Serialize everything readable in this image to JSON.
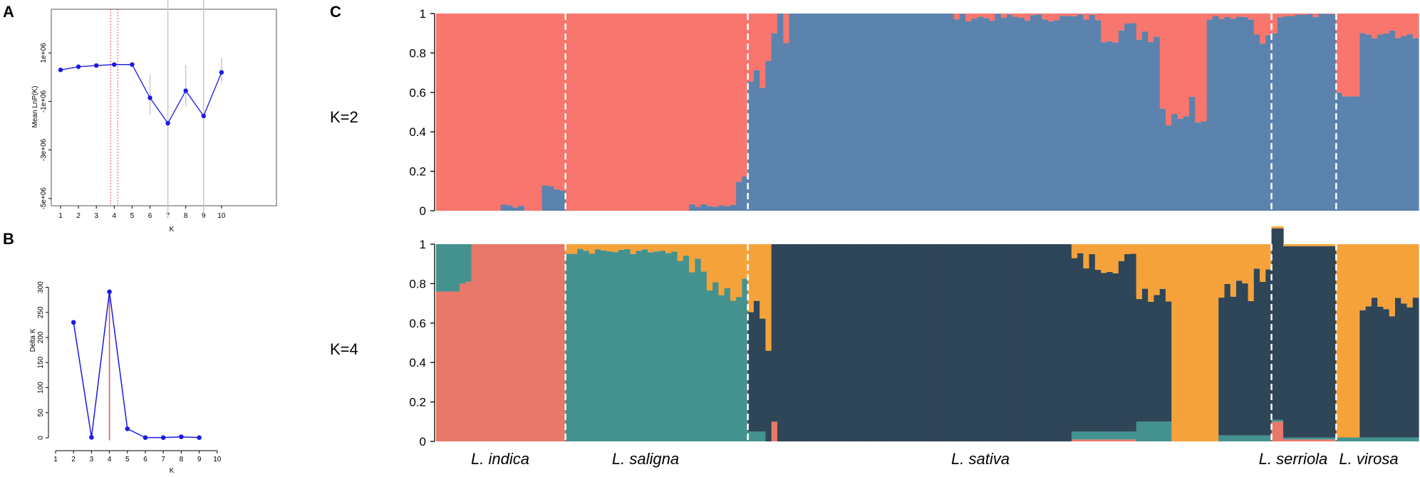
{
  "colors": {
    "k2_red": "#F8766D",
    "k2_blue": "#5B83AD",
    "k4_salmon": "#E8796A",
    "k4_teal": "#44928F",
    "k4_dark": "#2F4558",
    "k4_orange": "#F6A23A",
    "k4_pink": "#E88A86",
    "line_blue": "#1A1AE6",
    "err_gray": "#C8C8C8",
    "ref_red": "#E05050"
  },
  "panel_letters": {
    "a": "A",
    "b": "B",
    "c": "C"
  },
  "chart_data": [
    {
      "id": "A",
      "type": "line",
      "xlabel": "K",
      "ylabel": "Mean LnP(K)",
      "x": [
        1,
        2,
        3,
        4,
        5,
        6,
        7,
        8,
        9,
        10
      ],
      "xticks": [
        "1",
        "2",
        "3",
        "4",
        "5",
        "6",
        "7",
        "8",
        "9",
        "10"
      ],
      "y": [
        300000,
        430000,
        480000,
        520000,
        520000,
        -850000,
        -1900000,
        -560000,
        -1600000,
        200000
      ],
      "err_low": [
        null,
        null,
        null,
        null,
        null,
        -1550000,
        -5800000,
        -1200000,
        -5800000,
        -200000
      ],
      "err_high": [
        null,
        null,
        null,
        null,
        null,
        100000,
        3200000,
        500000,
        4500000,
        800000
      ],
      "ylim": [
        -5300000,
        2800000
      ],
      "yticks": [
        1000000,
        -1000000,
        -3000000,
        -5000000
      ],
      "ytick_labels": [
        "1e+06",
        "-1e+06",
        "-3e+06",
        "-5e+06"
      ],
      "vlines": [
        3.8,
        4.2
      ]
    },
    {
      "id": "B",
      "type": "line",
      "xlabel": "K",
      "ylabel": "Delta K",
      "x": [
        2,
        3,
        4,
        5,
        6,
        7,
        8,
        9
      ],
      "xticks": [
        "1",
        "2",
        "3",
        "4",
        "5",
        "6",
        "7",
        "8",
        "9",
        "10"
      ],
      "y": [
        230,
        1,
        291,
        18,
        0.5,
        0.5,
        2,
        0.5
      ],
      "ylim": [
        -10,
        300
      ],
      "yticks": [
        "0",
        "50",
        "100",
        "150",
        "200",
        "250",
        "300"
      ],
      "vline": 4
    },
    {
      "id": "C",
      "type": "bar",
      "stacked": true,
      "yticks": [
        "0",
        "0.2",
        "0.4",
        "0.6",
        "0.8",
        "1"
      ],
      "ylim": [
        0,
        1
      ],
      "rows": [
        {
          "k_label": "K=2",
          "clusters": [
            "k2_red",
            "k2_blue"
          ]
        },
        {
          "k_label": "K=4",
          "clusters": [
            "k4_salmon",
            "k4_teal",
            "k4_dark",
            "k4_orange"
          ]
        }
      ],
      "groups": [
        {
          "name": "L. indica",
          "n": 22
        },
        {
          "name": "L. saligna",
          "n": 31
        },
        {
          "name": "L. sativa",
          "n": 89
        },
        {
          "name": "L. serriola",
          "n": 11
        },
        {
          "name": "L. virosa",
          "n": 14
        }
      ]
    }
  ]
}
